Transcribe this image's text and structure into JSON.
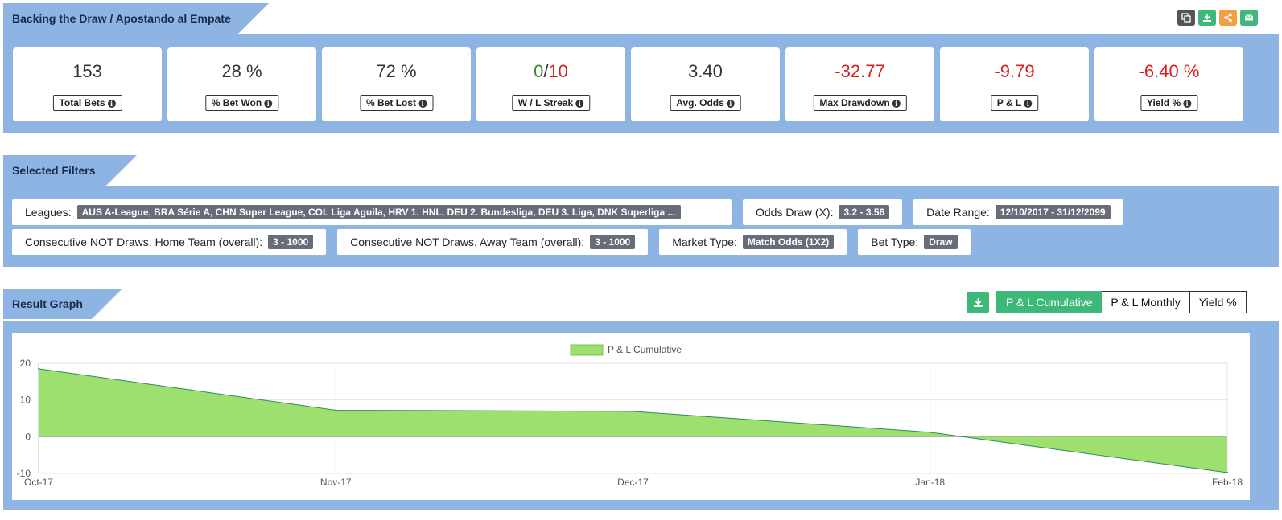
{
  "header": {
    "title": "Backing the Draw / Apostando al Empate",
    "tools": [
      {
        "icon": "copy-icon",
        "color": "#555555"
      },
      {
        "icon": "download-icon",
        "color": "#3cb878"
      },
      {
        "icon": "share-icon",
        "color": "#f0a040"
      },
      {
        "icon": "email-icon",
        "color": "#3cb878"
      }
    ]
  },
  "stats": [
    {
      "value": "153",
      "label": "Total Bets",
      "color": ""
    },
    {
      "value": "28 %",
      "label": "% Bet Won",
      "color": ""
    },
    {
      "value": "72 %",
      "label": "% Bet Lost",
      "color": ""
    },
    {
      "value_win": "0",
      "value_sep": "/",
      "value_loss": "10",
      "label": "W / L Streak"
    },
    {
      "value": "3.40",
      "label": "Avg. Odds",
      "color": ""
    },
    {
      "value": "-32.77",
      "label": "Max Drawdown",
      "color": "red"
    },
    {
      "value": "-9.79",
      "label": "P & L",
      "color": "red"
    },
    {
      "value": "-6.40 %",
      "label": "Yield %",
      "color": "red"
    }
  ],
  "filters": {
    "title": "Selected Filters",
    "row1": [
      {
        "label": "Leagues:",
        "value": "AUS A-League, BRA Série A, CHN Super League, COL Liga Aguila, HRV 1. HNL, DEU 2. Bundesliga, DEU 3. Liga, DNK Superliga ..."
      },
      {
        "label": "Odds Draw (X):",
        "value": "3.2 - 3.56"
      },
      {
        "label": "Date Range:",
        "value": "12/10/2017 - 31/12/2099"
      }
    ],
    "row2": [
      {
        "label": "Consecutive NOT Draws. Home Team (overall):",
        "value": "3 - 1000"
      },
      {
        "label": "Consecutive NOT Draws. Away Team (overall):",
        "value": "3 - 1000"
      },
      {
        "label": "Market Type:",
        "value": "Match Odds (1X2)"
      },
      {
        "label": "Bet Type:",
        "value": "Draw"
      }
    ]
  },
  "graph": {
    "title": "Result Graph",
    "tabs": [
      "P & L Cumulative",
      "P & L Monthly",
      "Yield %"
    ],
    "active_tab": 0
  },
  "chart_data": {
    "type": "area",
    "legend": "P & L Cumulative",
    "legend_position": "top-center",
    "x": [
      "Oct-17",
      "Nov-17",
      "Dec-17",
      "Jan-18",
      "Feb-18"
    ],
    "series": [
      {
        "name": "P & L Cumulative",
        "values": [
          18.5,
          7.2,
          6.9,
          1.2,
          -9.79
        ]
      }
    ],
    "ylim": [
      -10,
      20
    ],
    "yticks": [
      -10,
      0,
      10,
      20
    ],
    "grid": true,
    "fill_color": "#9ee070",
    "line_color": "#2e8a5a"
  }
}
